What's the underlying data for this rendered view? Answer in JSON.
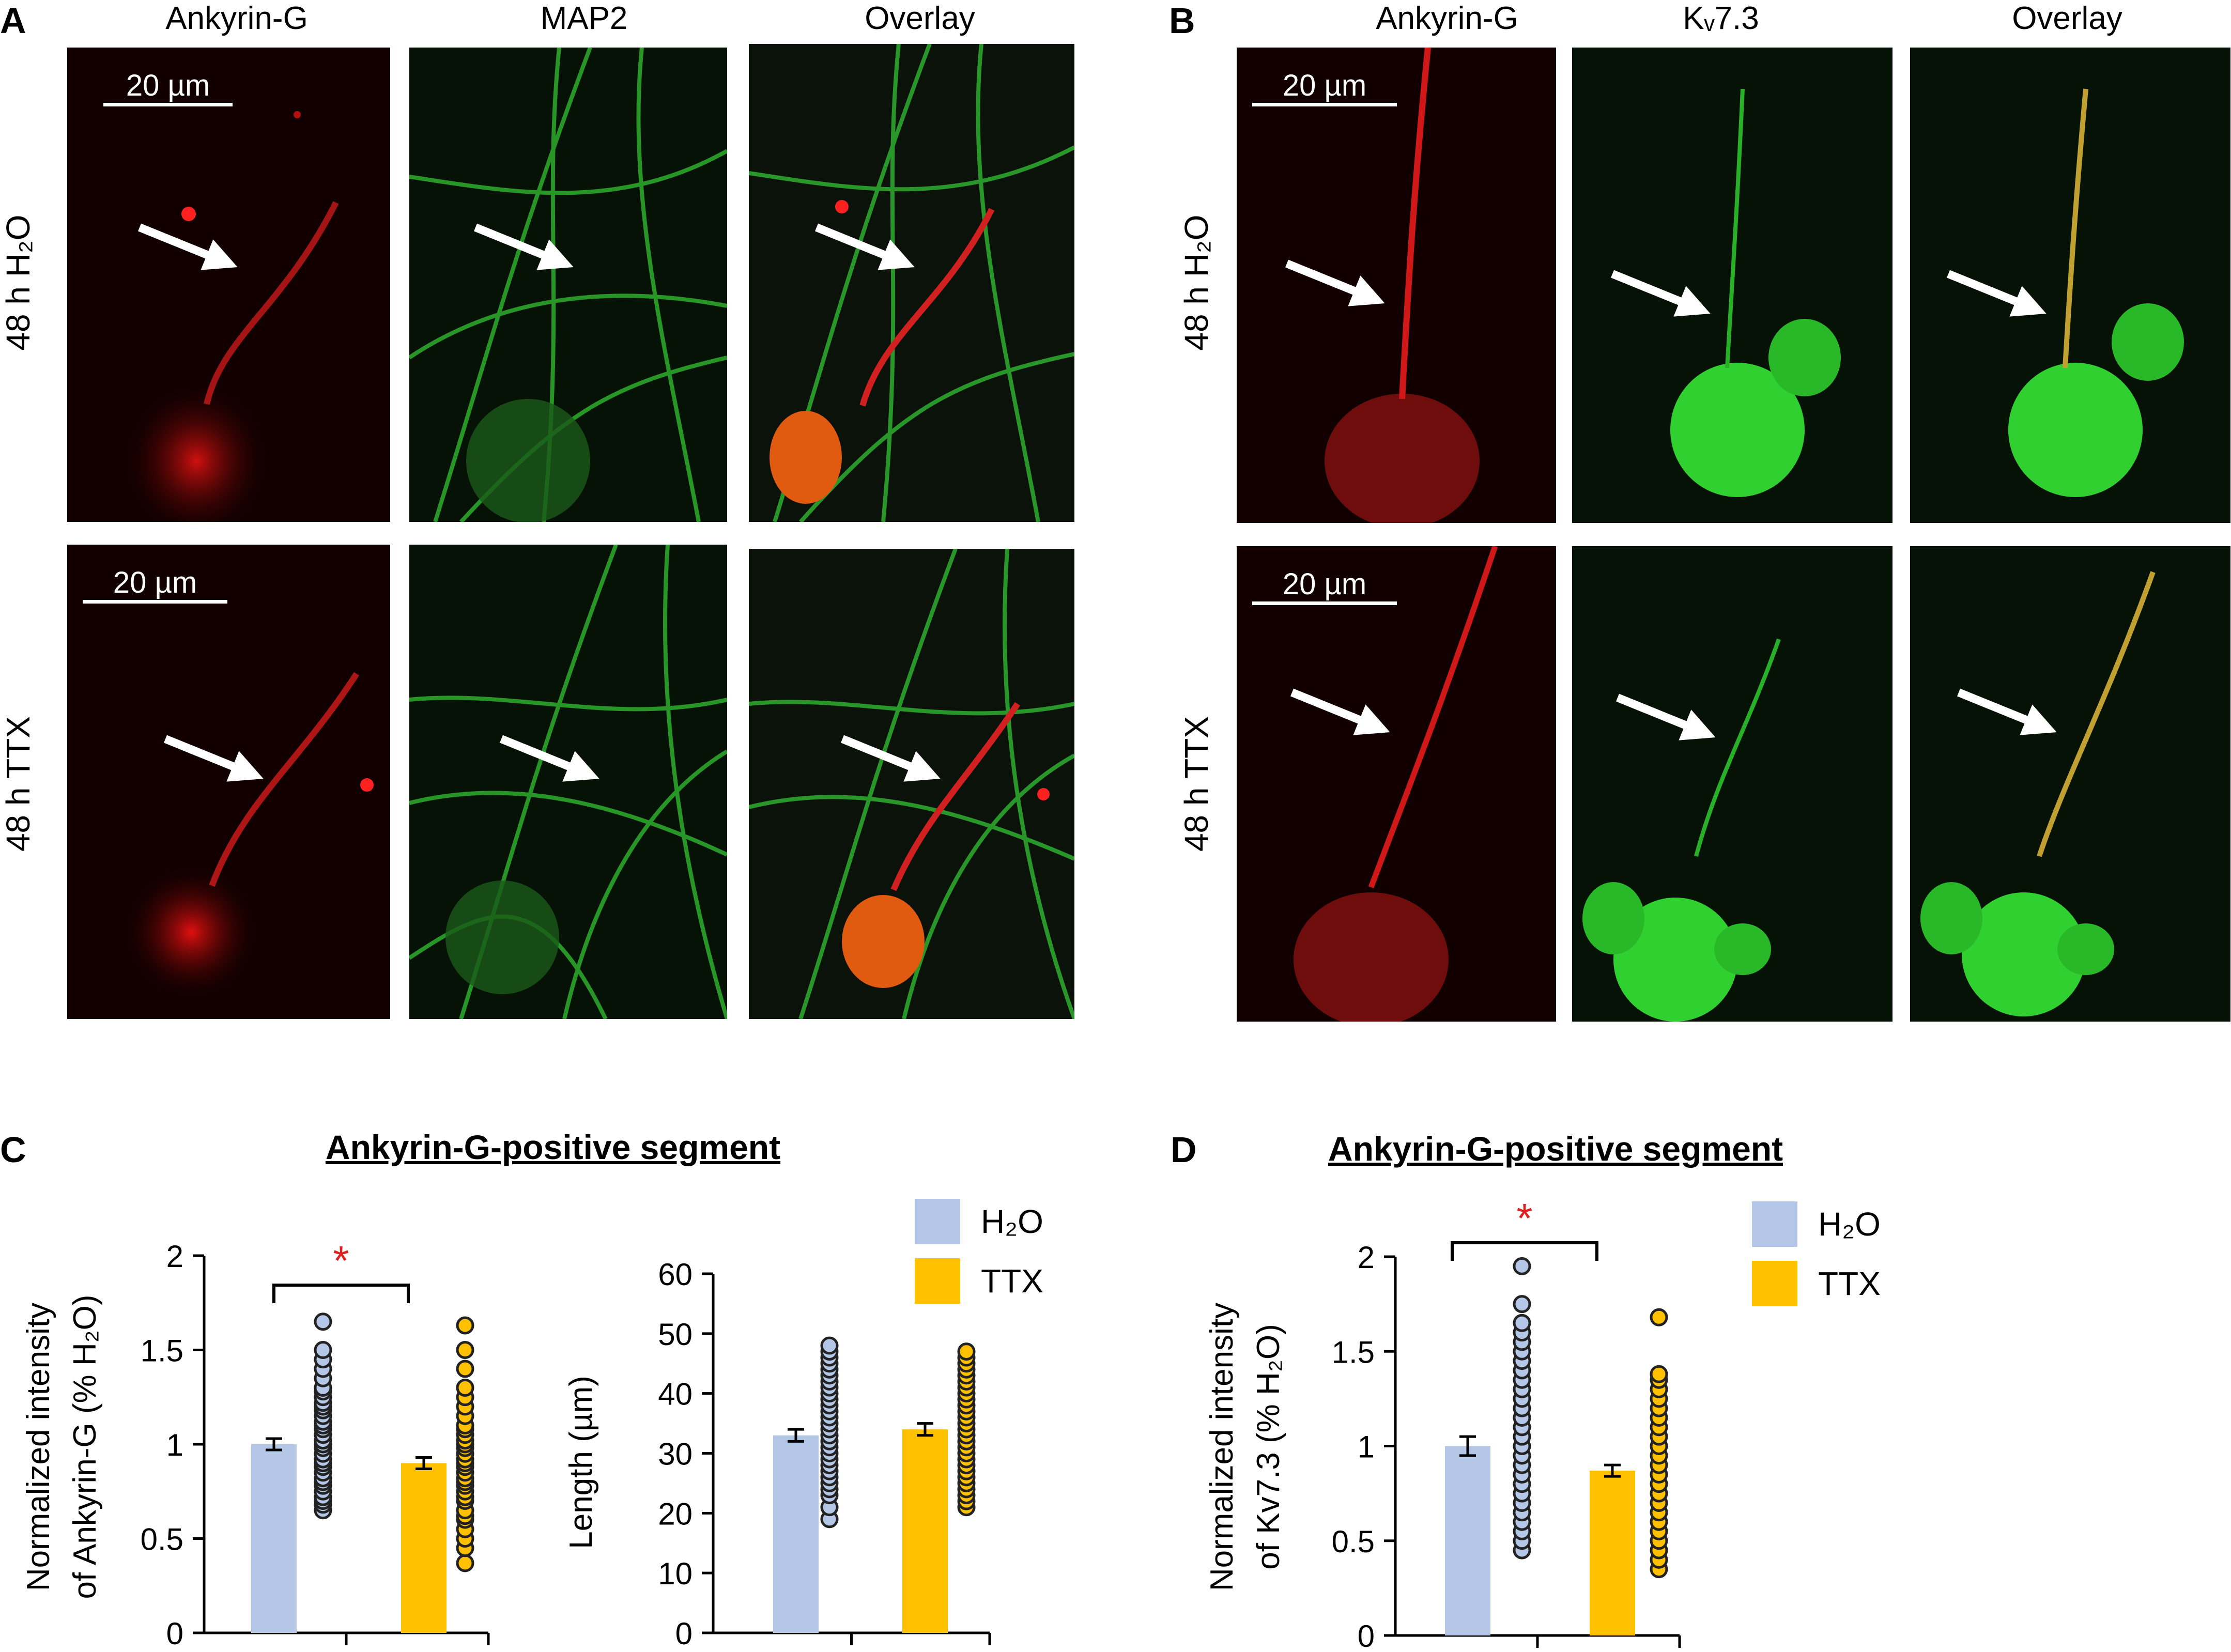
{
  "panel_A": {
    "label": "A",
    "channels": [
      "Ankyrin-G",
      "MAP2",
      "Overlay"
    ],
    "rows": [
      "48 h H₂O",
      "48 h TTX"
    ],
    "scale_bar": "20 µm"
  },
  "panel_B": {
    "label": "B",
    "channels": [
      "Ankyrin-G",
      "Kᵥ7.3",
      "Overlay"
    ],
    "rows": [
      "48 h H₂O",
      "48 h TTX"
    ],
    "scale_bar": "20 µm"
  },
  "panel_C": {
    "label": "C",
    "title": "Ankyrin-G-positive segment"
  },
  "panel_D": {
    "label": "D",
    "title": "Ankyrin-G-positive segment"
  },
  "legend": {
    "h2o": "H₂O",
    "ttx": "TTX"
  },
  "colors": {
    "h2o": "#b4c7e7",
    "ttx": "#ffc000",
    "significance": "#e02020",
    "ankyrin": "#e01818",
    "green": "#22c022"
  },
  "significance_mark": "*",
  "chart_data": [
    {
      "id": "C-left",
      "type": "bar",
      "categories": [
        "H₂O",
        "TTX"
      ],
      "values": [
        1.0,
        0.9
      ],
      "errors": [
        0.03,
        0.03
      ],
      "ylabel": "Normalized intensity of Ankyrin-G (% H₂O)",
      "ylim": [
        0,
        2
      ],
      "yticks": [
        "0",
        "0.5",
        "1",
        "1.5",
        "2"
      ],
      "significance": "*",
      "points": [
        [
          0.65,
          0.68,
          0.7,
          0.72,
          0.75,
          0.78,
          0.8,
          0.82,
          0.85,
          0.88,
          0.9,
          0.92,
          0.95,
          0.98,
          1.0,
          1.02,
          1.05,
          1.08,
          1.1,
          1.12,
          1.15,
          1.18,
          1.2,
          1.22,
          1.25,
          1.28,
          1.3,
          1.35,
          1.4,
          1.45,
          1.5,
          1.65
        ],
        [
          0.37,
          0.45,
          0.5,
          0.55,
          0.6,
          0.62,
          0.65,
          0.7,
          0.72,
          0.75,
          0.78,
          0.8,
          0.82,
          0.85,
          0.88,
          0.9,
          0.92,
          0.95,
          0.98,
          1.0,
          1.02,
          1.05,
          1.08,
          1.1,
          1.15,
          1.2,
          1.25,
          1.3,
          1.4,
          1.5,
          1.63
        ]
      ]
    },
    {
      "id": "C-right",
      "type": "bar",
      "categories": [
        "H₂O",
        "TTX"
      ],
      "values": [
        33,
        34
      ],
      "errors": [
        1.0,
        1.0
      ],
      "ylabel": "Length (µm)",
      "ylim": [
        0,
        60
      ],
      "yticks": [
        "0",
        "10",
        "20",
        "30",
        "40",
        "50",
        "60"
      ],
      "points": [
        [
          19,
          21,
          23,
          24,
          25,
          26,
          27,
          28,
          29,
          30,
          31,
          32,
          33,
          34,
          35,
          36,
          37,
          38,
          39,
          40,
          41,
          42,
          43,
          44,
          45,
          46,
          47,
          48
        ],
        [
          21,
          22,
          23,
          24,
          25,
          26,
          27,
          28,
          29,
          30,
          31,
          32,
          33,
          34,
          35,
          36,
          37,
          38,
          39,
          40,
          41,
          42,
          43,
          44,
          45,
          46,
          47
        ]
      ]
    },
    {
      "id": "D",
      "type": "bar",
      "categories": [
        "H₂O",
        "TTX"
      ],
      "values": [
        1.0,
        0.87
      ],
      "errors": [
        0.05,
        0.03
      ],
      "ylabel": "Normalized intensity of Kv7.3 (% H₂O)",
      "ylim": [
        0,
        2
      ],
      "yticks": [
        "0",
        "0.5",
        "1",
        "1.5",
        "2"
      ],
      "significance": "*",
      "points": [
        [
          0.45,
          0.5,
          0.55,
          0.6,
          0.65,
          0.7,
          0.75,
          0.8,
          0.85,
          0.9,
          0.95,
          1.0,
          1.05,
          1.1,
          1.15,
          1.2,
          1.25,
          1.3,
          1.35,
          1.4,
          1.45,
          1.5,
          1.55,
          1.6,
          1.65,
          1.75,
          1.95
        ],
        [
          0.35,
          0.4,
          0.45,
          0.5,
          0.55,
          0.6,
          0.65,
          0.7,
          0.75,
          0.8,
          0.85,
          0.9,
          0.95,
          1.0,
          1.05,
          1.1,
          1.15,
          1.2,
          1.25,
          1.3,
          1.35,
          1.38,
          1.68
        ]
      ]
    }
  ]
}
